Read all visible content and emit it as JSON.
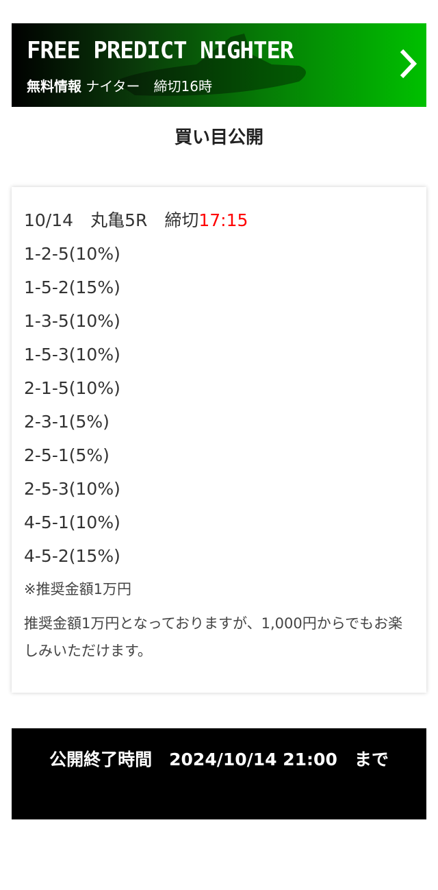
{
  "banner": {
    "title": "FREE PREDICT NIGHTER",
    "subtitle_bold": "無料情報",
    "subtitle_rest": "ナイター　締切16時",
    "arrow_icon": "chevron-right-icon",
    "colors": {
      "start": "#000000",
      "end": "#00c000"
    }
  },
  "heading": "買い目公開",
  "race": {
    "date": "10/14",
    "venue": "丸亀5R",
    "deadline_label": "締切",
    "deadline_time": "17:15",
    "deadline_color": "#ff0000"
  },
  "bets": [
    "1-2-5(10%)",
    "1-5-2(15%)",
    "1-3-5(10%)",
    "1-5-3(10%)",
    "2-1-5(10%)",
    "2-3-1(5%)",
    "2-5-1(5%)",
    "2-5-3(10%)",
    "4-5-1(10%)",
    "4-5-2(15%)"
  ],
  "note": "※推奨金額1万円",
  "description": "推奨金額1万円となっておりますが、1,000円からでもお楽しみいただけます。",
  "end": {
    "text": "公開終了時間　2024/10/14 21:00　まで"
  }
}
